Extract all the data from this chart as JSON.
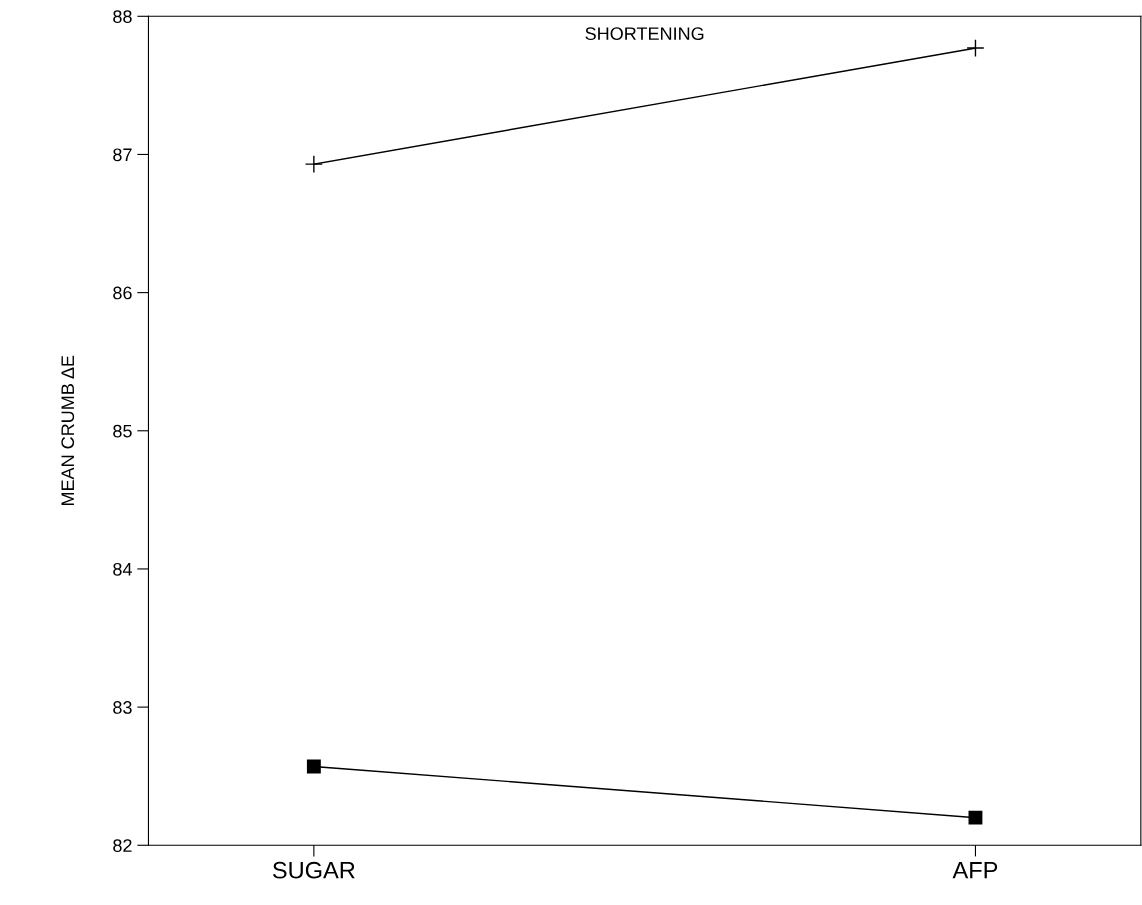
{
  "chart_data": {
    "type": "line",
    "ylabel": "MEAN CRUMB ΔE",
    "categories": [
      "SUGAR",
      "AFP"
    ],
    "series": [
      {
        "name": "SHORTENING",
        "color": "#000000",
        "marker": "cross",
        "values": [
          86.93,
          87.77
        ]
      },
      {
        "color": "#000000",
        "marker": "square",
        "values": [
          82.57,
          82.2
        ]
      }
    ],
    "ylim": [
      82,
      88
    ],
    "yticks": [
      82,
      83,
      84,
      85,
      86,
      87,
      88
    ],
    "grid": false,
    "legend": false,
    "line_style": "solid"
  }
}
